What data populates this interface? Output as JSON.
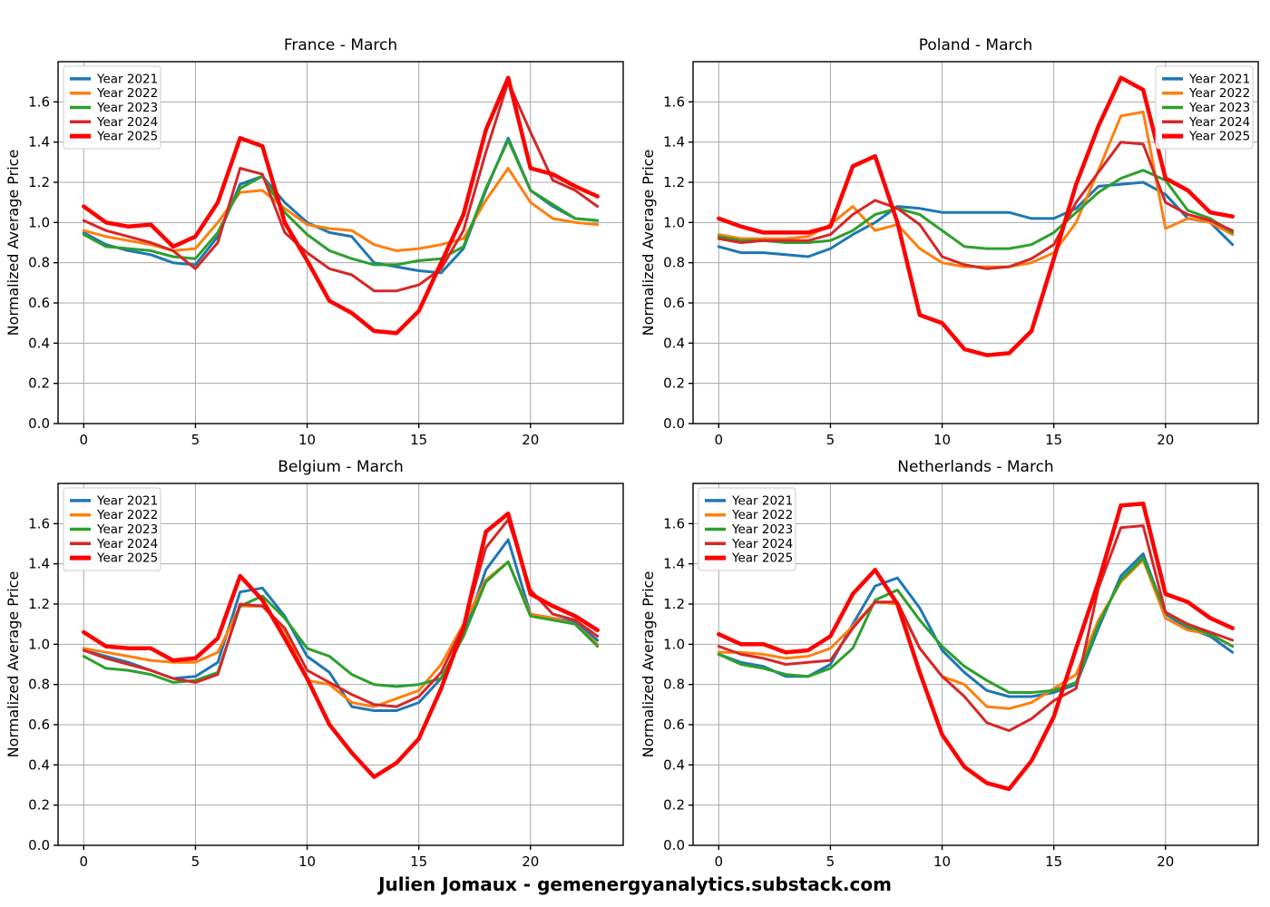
{
  "caption": "Julien Jomaux - gemenergyanalytics.substack.com",
  "hours": [
    0,
    1,
    2,
    3,
    4,
    5,
    6,
    7,
    8,
    9,
    10,
    11,
    12,
    13,
    14,
    15,
    16,
    17,
    18,
    19,
    20,
    21,
    22,
    23
  ],
  "axes": {
    "ylabel": "Normalized Average Price",
    "x_ticks": [
      0,
      5,
      10,
      15,
      20
    ],
    "y_ticks": [
      0.0,
      0.2,
      0.4,
      0.6,
      0.8,
      1.0,
      1.2,
      1.4,
      1.6
    ],
    "xlim": [
      -1.15,
      24.15
    ],
    "ylim": [
      0,
      1.8
    ],
    "grid": true,
    "grid_color": "#a8a8a8",
    "spine_color": "#000000"
  },
  "legend_labels": [
    "Year 2021",
    "Year 2022",
    "Year 2023",
    "Year 2024",
    "Year 2025"
  ],
  "series_colors": {
    "Year 2021": "#1f77b4",
    "Year 2022": "#ff7f0e",
    "Year 2023": "#2ca02c",
    "Year 2024": "#d62728",
    "Year 2025": "#ff0000"
  },
  "chart_data": [
    {
      "type": "line",
      "title": "France - March",
      "xlabel": "",
      "ylabel": "Normalized Average Price",
      "legend_position": "top-left",
      "series": [
        {
          "name": "Year 2021",
          "color": "#1f77b4",
          "linewidth": 3,
          "values": [
            0.95,
            0.89,
            0.86,
            0.84,
            0.8,
            0.79,
            0.93,
            1.19,
            1.23,
            1.1,
            1.0,
            0.95,
            0.93,
            0.8,
            0.78,
            0.76,
            0.75,
            0.87,
            1.16,
            1.42,
            1.16,
            1.08,
            1.02,
            1.01
          ]
        },
        {
          "name": "Year 2022",
          "color": "#ff7f0e",
          "linewidth": 3,
          "values": [
            0.96,
            0.93,
            0.91,
            0.89,
            0.86,
            0.87,
            1.0,
            1.15,
            1.16,
            1.07,
            0.99,
            0.97,
            0.96,
            0.89,
            0.86,
            0.87,
            0.89,
            0.92,
            1.11,
            1.27,
            1.1,
            1.02,
            1.0,
            0.99
          ]
        },
        {
          "name": "Year 2023",
          "color": "#2ca02c",
          "linewidth": 3,
          "values": [
            0.94,
            0.88,
            0.87,
            0.86,
            0.83,
            0.82,
            0.95,
            1.17,
            1.23,
            1.05,
            0.94,
            0.86,
            0.82,
            0.79,
            0.79,
            0.81,
            0.82,
            0.88,
            1.17,
            1.41,
            1.16,
            1.09,
            1.02,
            1.01
          ]
        },
        {
          "name": "Year 2024",
          "color": "#d62728",
          "linewidth": 3,
          "values": [
            1.01,
            0.96,
            0.93,
            0.9,
            0.86,
            0.77,
            0.9,
            1.27,
            1.24,
            0.95,
            0.85,
            0.77,
            0.74,
            0.66,
            0.66,
            0.69,
            0.77,
            0.96,
            1.35,
            1.7,
            1.45,
            1.21,
            1.16,
            1.08
          ]
        },
        {
          "name": "Year 2025",
          "color": "#ff0000",
          "linewidth": 4.5,
          "values": [
            1.08,
            1.0,
            0.98,
            0.99,
            0.88,
            0.93,
            1.1,
            1.42,
            1.38,
            1.0,
            0.81,
            0.61,
            0.55,
            0.46,
            0.45,
            0.56,
            0.8,
            1.04,
            1.46,
            1.72,
            1.27,
            1.24,
            1.18,
            1.13
          ]
        }
      ]
    },
    {
      "type": "line",
      "title": "Poland - March",
      "xlabel": "",
      "ylabel": "Normalized Average Price",
      "legend_position": "top-right",
      "series": [
        {
          "name": "Year 2021",
          "color": "#1f77b4",
          "linewidth": 3,
          "values": [
            0.88,
            0.85,
            0.85,
            0.84,
            0.83,
            0.87,
            0.94,
            1.0,
            1.08,
            1.07,
            1.05,
            1.05,
            1.05,
            1.05,
            1.02,
            1.02,
            1.07,
            1.18,
            1.19,
            1.2,
            1.14,
            1.02,
            1.0,
            0.89
          ]
        },
        {
          "name": "Year 2022",
          "color": "#ff7f0e",
          "linewidth": 3,
          "values": [
            0.94,
            0.92,
            0.92,
            0.92,
            0.93,
            0.99,
            1.08,
            0.96,
            0.99,
            0.87,
            0.8,
            0.78,
            0.78,
            0.78,
            0.8,
            0.85,
            1.0,
            1.26,
            1.53,
            1.55,
            0.97,
            1.02,
            1.0,
            0.94
          ]
        },
        {
          "name": "Year 2023",
          "color": "#2ca02c",
          "linewidth": 3,
          "values": [
            0.93,
            0.91,
            0.91,
            0.9,
            0.9,
            0.91,
            0.96,
            1.04,
            1.07,
            1.04,
            0.96,
            0.88,
            0.87,
            0.87,
            0.89,
            0.95,
            1.05,
            1.15,
            1.22,
            1.26,
            1.21,
            1.06,
            1.02,
            0.95
          ]
        },
        {
          "name": "Year 2024",
          "color": "#d62728",
          "linewidth": 3,
          "values": [
            0.92,
            0.9,
            0.91,
            0.91,
            0.91,
            0.94,
            1.04,
            1.11,
            1.07,
            0.99,
            0.83,
            0.79,
            0.77,
            0.78,
            0.82,
            0.89,
            1.1,
            1.25,
            1.4,
            1.39,
            1.1,
            1.04,
            1.01,
            0.96
          ]
        },
        {
          "name": "Year 2025",
          "color": "#ff0000",
          "linewidth": 4.5,
          "values": [
            1.02,
            0.98,
            0.95,
            0.95,
            0.95,
            0.98,
            1.28,
            1.33,
            1.0,
            0.54,
            0.5,
            0.37,
            0.34,
            0.35,
            0.46,
            0.82,
            1.19,
            1.48,
            1.72,
            1.66,
            1.22,
            1.16,
            1.05,
            1.03
          ]
        }
      ]
    },
    {
      "type": "line",
      "title": "Belgium - March",
      "xlabel": "",
      "ylabel": "Normalized Average Price",
      "legend_position": "top-left",
      "series": [
        {
          "name": "Year 2021",
          "color": "#1f77b4",
          "linewidth": 3,
          "values": [
            0.97,
            0.94,
            0.91,
            0.87,
            0.83,
            0.84,
            0.91,
            1.26,
            1.28,
            1.14,
            0.94,
            0.86,
            0.69,
            0.67,
            0.67,
            0.71,
            0.83,
            1.04,
            1.37,
            1.52,
            1.15,
            1.13,
            1.11,
            1.02
          ]
        },
        {
          "name": "Year 2022",
          "color": "#ff7f0e",
          "linewidth": 3,
          "values": [
            0.98,
            0.96,
            0.94,
            0.92,
            0.91,
            0.91,
            0.96,
            1.19,
            1.19,
            1.07,
            0.82,
            0.8,
            0.71,
            0.69,
            0.73,
            0.77,
            0.9,
            1.1,
            1.32,
            1.41,
            1.15,
            1.13,
            1.1,
            1.0
          ]
        },
        {
          "name": "Year 2023",
          "color": "#2ca02c",
          "linewidth": 3,
          "values": [
            0.94,
            0.88,
            0.87,
            0.85,
            0.81,
            0.82,
            0.86,
            1.19,
            1.24,
            1.13,
            0.98,
            0.94,
            0.85,
            0.8,
            0.79,
            0.8,
            0.83,
            1.04,
            1.31,
            1.41,
            1.14,
            1.12,
            1.1,
            0.99
          ]
        },
        {
          "name": "Year 2024",
          "color": "#d62728",
          "linewidth": 3,
          "values": [
            0.97,
            0.93,
            0.9,
            0.87,
            0.83,
            0.81,
            0.85,
            1.2,
            1.19,
            1.08,
            0.87,
            0.81,
            0.75,
            0.7,
            0.69,
            0.74,
            0.86,
            1.09,
            1.48,
            1.62,
            1.27,
            1.15,
            1.12,
            1.04
          ]
        },
        {
          "name": "Year 2025",
          "color": "#ff0000",
          "linewidth": 4.5,
          "values": [
            1.06,
            0.99,
            0.98,
            0.98,
            0.92,
            0.93,
            1.03,
            1.34,
            1.22,
            1.03,
            0.83,
            0.6,
            0.46,
            0.34,
            0.41,
            0.53,
            0.78,
            1.08,
            1.56,
            1.65,
            1.25,
            1.19,
            1.14,
            1.07
          ]
        }
      ]
    },
    {
      "type": "line",
      "title": "Netherlands - March",
      "xlabel": "",
      "ylabel": "Normalized Average Price",
      "legend_position": "top-left",
      "series": [
        {
          "name": "Year 2021",
          "color": "#1f77b4",
          "linewidth": 3,
          "values": [
            0.95,
            0.91,
            0.89,
            0.84,
            0.84,
            0.9,
            1.1,
            1.29,
            1.33,
            1.18,
            0.97,
            0.86,
            0.77,
            0.74,
            0.74,
            0.76,
            0.8,
            1.08,
            1.34,
            1.45,
            1.15,
            1.08,
            1.04,
            0.96
          ]
        },
        {
          "name": "Year 2022",
          "color": "#ff7f0e",
          "linewidth": 3,
          "values": [
            0.96,
            0.96,
            0.95,
            0.93,
            0.94,
            0.98,
            1.09,
            1.21,
            1.2,
            0.98,
            0.84,
            0.8,
            0.69,
            0.68,
            0.71,
            0.78,
            0.85,
            1.12,
            1.31,
            1.42,
            1.13,
            1.07,
            1.05,
            0.99
          ]
        },
        {
          "name": "Year 2023",
          "color": "#2ca02c",
          "linewidth": 3,
          "values": [
            0.95,
            0.9,
            0.88,
            0.85,
            0.84,
            0.88,
            0.98,
            1.22,
            1.27,
            1.12,
            0.99,
            0.89,
            0.82,
            0.76,
            0.76,
            0.77,
            0.81,
            1.1,
            1.32,
            1.43,
            1.16,
            1.09,
            1.05,
            0.99
          ]
        },
        {
          "name": "Year 2024",
          "color": "#d62728",
          "linewidth": 3,
          "values": [
            0.99,
            0.95,
            0.93,
            0.9,
            0.91,
            0.92,
            1.08,
            1.21,
            1.21,
            0.98,
            0.84,
            0.74,
            0.61,
            0.57,
            0.63,
            0.72,
            0.78,
            1.28,
            1.58,
            1.59,
            1.16,
            1.1,
            1.06,
            1.02
          ]
        },
        {
          "name": "Year 2025",
          "color": "#ff0000",
          "linewidth": 4.5,
          "values": [
            1.05,
            1.0,
            1.0,
            0.96,
            0.97,
            1.04,
            1.25,
            1.37,
            1.2,
            0.86,
            0.55,
            0.39,
            0.31,
            0.28,
            0.42,
            0.64,
            0.98,
            1.31,
            1.69,
            1.7,
            1.25,
            1.21,
            1.13,
            1.08
          ]
        }
      ]
    }
  ]
}
